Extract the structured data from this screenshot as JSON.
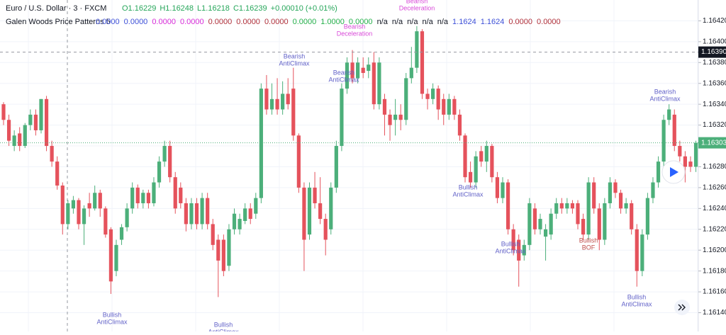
{
  "chart_data": {
    "type": "candlestick",
    "symbol": "Euro / U.S. Dollar · 3 · FXCM",
    "ohlc_header": [
      "O1.16229",
      "H1.16248",
      "L1.16218",
      "C1.16239",
      "+0.00010 (+0.01%)"
    ],
    "indicator": {
      "name": "Galen Woods Price Patterns 5",
      "values": [
        "0.0000",
        "0.0000",
        "0.0000",
        "0.0000",
        "0.0000",
        "0.0000",
        "0.0000",
        "0.0000",
        "1.0000",
        "0.0000",
        "n/a",
        "n/a",
        "n/a",
        "n/a",
        "n/a",
        "1.1624",
        "1.1624",
        "0.0000",
        "0.0000"
      ],
      "value_colors": [
        "#3f51d8",
        "#3f51d8",
        "#d82bd8",
        "#d82bd8",
        "#b0303a",
        "#b0303a",
        "#b0303a",
        "#25b04a",
        "#25b04a",
        "#25b04a",
        "#131722",
        "#131722",
        "#131722",
        "#131722",
        "#131722",
        "#3f51d8",
        "#3f51d8",
        "#b0303a",
        "#b0303a"
      ]
    },
    "up_color": "#4caf7a",
    "down_color": "#e5525c",
    "ylim": [
      1.16122,
      1.1644
    ],
    "yticks": [
      {
        "value": 1.1642,
        "label": "1.16420"
      },
      {
        "value": 1.164,
        "label": "1.16400"
      },
      {
        "value": 1.1638,
        "label": "1.16380"
      },
      {
        "value": 1.1636,
        "label": "1.16360"
      },
      {
        "value": 1.1634,
        "label": "1.16340"
      },
      {
        "value": 1.1632,
        "label": "1.16320"
      },
      {
        "value": 1.163,
        "label": "1.16300"
      },
      {
        "value": 1.1628,
        "label": "1.16280"
      },
      {
        "value": 1.1626,
        "label": "1.16260"
      },
      {
        "value": 1.1624,
        "label": "1.16240"
      },
      {
        "value": 1.1622,
        "label": "1.16220"
      },
      {
        "value": 1.162,
        "label": "1.16200"
      },
      {
        "value": 1.1618,
        "label": "1.16180"
      },
      {
        "value": 1.1616,
        "label": "1.16160"
      },
      {
        "value": 1.1614,
        "label": "1.16140"
      }
    ],
    "grid": true,
    "last_price": 1.16303,
    "crosshair_price": {
      "value": 1.1639,
      "label": "1.16390"
    },
    "annotations": [
      {
        "lines": [
          "Bearish",
          "AntiClimax"
        ],
        "color": "#6262c8"
      },
      {
        "lines": [
          "Bearish",
          "Deceleration"
        ],
        "color": "#d84ad8"
      },
      {
        "lines": [
          "Bearish",
          "Deceleration"
        ],
        "color": "#d84ad8"
      },
      {
        "lines": [
          "Bearish",
          "AntiClimax"
        ],
        "color": "#6262c8"
      },
      {
        "lines": [
          "Bullish",
          "AntiClimax"
        ],
        "color": "#6262c8"
      },
      {
        "lines": [
          "Bullish",
          "AntiClimax"
        ],
        "color": "#6262c8"
      },
      {
        "lines": [
          "Bullish",
          "AntiClimax"
        ],
        "color": "#6262c8"
      },
      {
        "lines": [
          "Bullish",
          "AntiClimax"
        ],
        "color": "#6262c8"
      },
      {
        "lines": [
          "Bullish",
          "BOF"
        ],
        "color": "#c0504d"
      },
      {
        "lines": [
          "Bullish",
          "AntiClimax"
        ],
        "color": "#6262c8"
      },
      {
        "lines": [
          "Bearish",
          "AntiClimax"
        ],
        "color": "#6262c8"
      }
    ],
    "ohlc": [
      [
        1.1634,
        1.16342,
        1.1632,
        1.16325
      ],
      [
        1.16325,
        1.1633,
        1.163,
        1.16305
      ],
      [
        1.163,
        1.16315,
        1.16295,
        1.1631
      ],
      [
        1.16312,
        1.16318,
        1.16295,
        1.163
      ],
      [
        1.163,
        1.16322,
        1.16298,
        1.1632
      ],
      [
        1.1632,
        1.16335,
        1.16315,
        1.1633
      ],
      [
        1.1633,
        1.16335,
        1.1631,
        1.16315
      ],
      [
        1.16315,
        1.16345,
        1.16312,
        1.16345
      ],
      [
        1.16345,
        1.16348,
        1.16295,
        1.163
      ],
      [
        1.163,
        1.16305,
        1.1628,
        1.16285
      ],
      [
        1.16285,
        1.1629,
        1.16258,
        1.16262
      ],
      [
        1.16262,
        1.16265,
        1.16215,
        1.16225
      ],
      [
        1.16225,
        1.16248,
        1.1622,
        1.16245
      ],
      [
        1.1624,
        1.16252,
        1.16235,
        1.16248
      ],
      [
        1.16248,
        1.1625,
        1.1622,
        1.16225
      ],
      [
        1.16225,
        1.16243,
        1.16205,
        1.1624
      ],
      [
        1.16245,
        1.16255,
        1.16232,
        1.1624
      ],
      [
        1.1624,
        1.16262,
        1.16238,
        1.16255
      ],
      [
        1.16255,
        1.16258,
        1.16232,
        1.1624
      ],
      [
        1.1624,
        1.16242,
        1.16212,
        1.16215
      ],
      [
        1.1622,
        1.16222,
        1.16158,
        1.1617
      ],
      [
        1.1618,
        1.1621,
        1.16175,
        1.16205
      ],
      [
        1.1621,
        1.16225,
        1.16205,
        1.16222
      ],
      [
        1.16222,
        1.16245,
        1.16218,
        1.1624
      ],
      [
        1.1624,
        1.16265,
        1.16235,
        1.1626
      ],
      [
        1.1626,
        1.16263,
        1.1624,
        1.16245
      ],
      [
        1.16245,
        1.16258,
        1.1624,
        1.16255
      ],
      [
        1.16255,
        1.16258,
        1.1624,
        1.16245
      ],
      [
        1.16245,
        1.1627,
        1.16242,
        1.16265
      ],
      [
        1.16265,
        1.1629,
        1.1626,
        1.16285
      ],
      [
        1.16285,
        1.16305,
        1.1628,
        1.163
      ],
      [
        1.163,
        1.16305,
        1.16265,
        1.1627
      ],
      [
        1.1627,
        1.16275,
        1.16235,
        1.1624
      ],
      [
        1.1626,
        1.16265,
        1.1624,
        1.16245
      ],
      [
        1.16245,
        1.1625,
        1.16218,
        1.16225
      ],
      [
        1.16225,
        1.1625,
        1.1622,
        1.16245
      ],
      [
        1.16245,
        1.1625,
        1.1622,
        1.16225
      ],
      [
        1.16225,
        1.16255,
        1.1622,
        1.1625
      ],
      [
        1.1625,
        1.16255,
        1.1622,
        1.16225
      ],
      [
        1.16225,
        1.1623,
        1.162,
        1.16205
      ],
      [
        1.1621,
        1.16215,
        1.16155,
        1.1619
      ],
      [
        1.1621,
        1.16215,
        1.16175,
        1.1618
      ],
      [
        1.16185,
        1.16225,
        1.1618,
        1.1622
      ],
      [
        1.1622,
        1.1624,
        1.16215,
        1.16235
      ],
      [
        1.1622,
        1.16235,
        1.16215,
        1.1623
      ],
      [
        1.16228,
        1.16245,
        1.16225,
        1.1624
      ],
      [
        1.1624,
        1.16245,
        1.16225,
        1.1623
      ],
      [
        1.16235,
        1.16255,
        1.1623,
        1.1625
      ],
      [
        1.1625,
        1.1636,
        1.16245,
        1.16355
      ],
      [
        1.16355,
        1.16368,
        1.1633,
        1.16335
      ],
      [
        1.16335,
        1.1636,
        1.1633,
        1.16345
      ],
      [
        1.16345,
        1.16365,
        1.1633,
        1.16335
      ],
      [
        1.16335,
        1.16362,
        1.1633,
        1.1635
      ],
      [
        1.1635,
        1.16365,
        1.16335,
        1.1634
      ],
      [
        1.16355,
        1.16375,
        1.16305,
        1.1631
      ],
      [
        1.1631,
        1.16312,
        1.16255,
        1.1626
      ],
      [
        1.1626,
        1.16265,
        1.1618,
        1.1621
      ],
      [
        1.16215,
        1.16265,
        1.1621,
        1.1626
      ],
      [
        1.1626,
        1.16275,
        1.1624,
        1.16245
      ],
      [
        1.16245,
        1.1627,
        1.16225,
        1.1623
      ],
      [
        1.1623,
        1.16235,
        1.16195,
        1.1621
      ],
      [
        1.1622,
        1.16265,
        1.16215,
        1.1626
      ],
      [
        1.1626,
        1.16305,
        1.16255,
        1.163
      ],
      [
        1.163,
        1.1636,
        1.16295,
        1.16355
      ],
      [
        1.16355,
        1.16385,
        1.1635,
        1.1638
      ],
      [
        1.1638,
        1.16392,
        1.1636,
        1.16365
      ],
      [
        1.16365,
        1.16385,
        1.1636,
        1.1638
      ],
      [
        1.16375,
        1.16385,
        1.16365,
        1.1637
      ],
      [
        1.16372,
        1.16385,
        1.16365,
        1.16378
      ],
      [
        1.1638,
        1.1639,
        1.16335,
        1.1634
      ],
      [
        1.1634,
        1.16385,
        1.16335,
        1.1638
      ],
      [
        1.16345,
        1.1635,
        1.1631,
        1.1633
      ],
      [
        1.1633,
        1.16335,
        1.16305,
        1.1632
      ],
      [
        1.16325,
        1.16345,
        1.1631,
        1.1633
      ],
      [
        1.1633,
        1.1634,
        1.16315,
        1.16325
      ],
      [
        1.16325,
        1.1637,
        1.1632,
        1.16365
      ],
      [
        1.16365,
        1.16395,
        1.1636,
        1.16375
      ],
      [
        1.16375,
        1.16415,
        1.1637,
        1.1641
      ],
      [
        1.1641,
        1.16412,
        1.16345,
        1.1635
      ],
      [
        1.1635,
        1.16355,
        1.16335,
        1.16345
      ],
      [
        1.16345,
        1.1636,
        1.1634,
        1.16355
      ],
      [
        1.16355,
        1.16358,
        1.16325,
        1.16335
      ],
      [
        1.16345,
        1.1635,
        1.1632,
        1.1633
      ],
      [
        1.1633,
        1.1635,
        1.16325,
        1.16345
      ],
      [
        1.16345,
        1.16348,
        1.16325,
        1.1633
      ],
      [
        1.1633,
        1.16335,
        1.16305,
        1.1631
      ],
      [
        1.1631,
        1.16312,
        1.16265,
        1.1627
      ],
      [
        1.16275,
        1.16285,
        1.1626,
        1.16265
      ],
      [
        1.16265,
        1.16295,
        1.1626,
        1.1629
      ],
      [
        1.16295,
        1.163,
        1.1628,
        1.16285
      ],
      [
        1.16285,
        1.16305,
        1.16275,
        1.163
      ],
      [
        1.163,
        1.16302,
        1.16265,
        1.1627
      ],
      [
        1.1627,
        1.16275,
        1.16245,
        1.1625
      ],
      [
        1.1625,
        1.1627,
        1.16245,
        1.16265
      ],
      [
        1.16265,
        1.16268,
        1.16215,
        1.1622
      ],
      [
        1.1622,
        1.16225,
        1.16195,
        1.162
      ],
      [
        1.1621,
        1.16215,
        1.16165,
        1.1619
      ],
      [
        1.16195,
        1.1621,
        1.1619,
        1.16205
      ],
      [
        1.16205,
        1.1625,
        1.162,
        1.16245
      ],
      [
        1.1624,
        1.16245,
        1.16215,
        1.1622
      ],
      [
        1.1622,
        1.16235,
        1.16215,
        1.1623
      ],
      [
        1.16213,
        1.16225,
        1.1619,
        1.1622
      ],
      [
        1.16215,
        1.1624,
        1.1621,
        1.16235
      ],
      [
        1.16235,
        1.1625,
        1.1623,
        1.16245
      ],
      [
        1.16245,
        1.1625,
        1.16235,
        1.1624
      ],
      [
        1.1624,
        1.1625,
        1.16235,
        1.16245
      ],
      [
        1.16245,
        1.16248,
        1.16235,
        1.1624
      ],
      [
        1.16245,
        1.16248,
        1.1622,
        1.16225
      ],
      [
        1.1623,
        1.16235,
        1.1621,
        1.16215
      ],
      [
        1.16215,
        1.1627,
        1.1621,
        1.16265
      ],
      [
        1.16265,
        1.1627,
        1.16235,
        1.1624
      ],
      [
        1.1624,
        1.16245,
        1.162,
        1.1621
      ],
      [
        1.1621,
        1.1625,
        1.16205,
        1.16245
      ],
      [
        1.16245,
        1.1627,
        1.1624,
        1.16265
      ],
      [
        1.16265,
        1.16268,
        1.1625,
        1.16255
      ],
      [
        1.16255,
        1.16258,
        1.16235,
        1.1624
      ],
      [
        1.1624,
        1.1625,
        1.16235,
        1.16245
      ],
      [
        1.16245,
        1.16248,
        1.16215,
        1.1622
      ],
      [
        1.1622,
        1.16225,
        1.16165,
        1.1618
      ],
      [
        1.1618,
        1.1622,
        1.16175,
        1.16215
      ],
      [
        1.16215,
        1.16255,
        1.1621,
        1.1625
      ],
      [
        1.1625,
        1.1627,
        1.16245,
        1.16265
      ],
      [
        1.16265,
        1.1629,
        1.1626,
        1.16285
      ],
      [
        1.16285,
        1.1633,
        1.1628,
        1.16325
      ],
      [
        1.16325,
        1.1634,
        1.1632,
        1.16335
      ],
      [
        1.1633,
        1.16335,
        1.16295,
        1.163
      ],
      [
        1.163,
        1.16305,
        1.16285,
        1.1629
      ],
      [
        1.1629,
        1.16295,
        1.16265,
        1.1628
      ],
      [
        1.16285,
        1.1629,
        1.16275,
        1.1628
      ],
      [
        1.1628,
        1.16305,
        1.16275,
        1.16303
      ]
    ]
  }
}
